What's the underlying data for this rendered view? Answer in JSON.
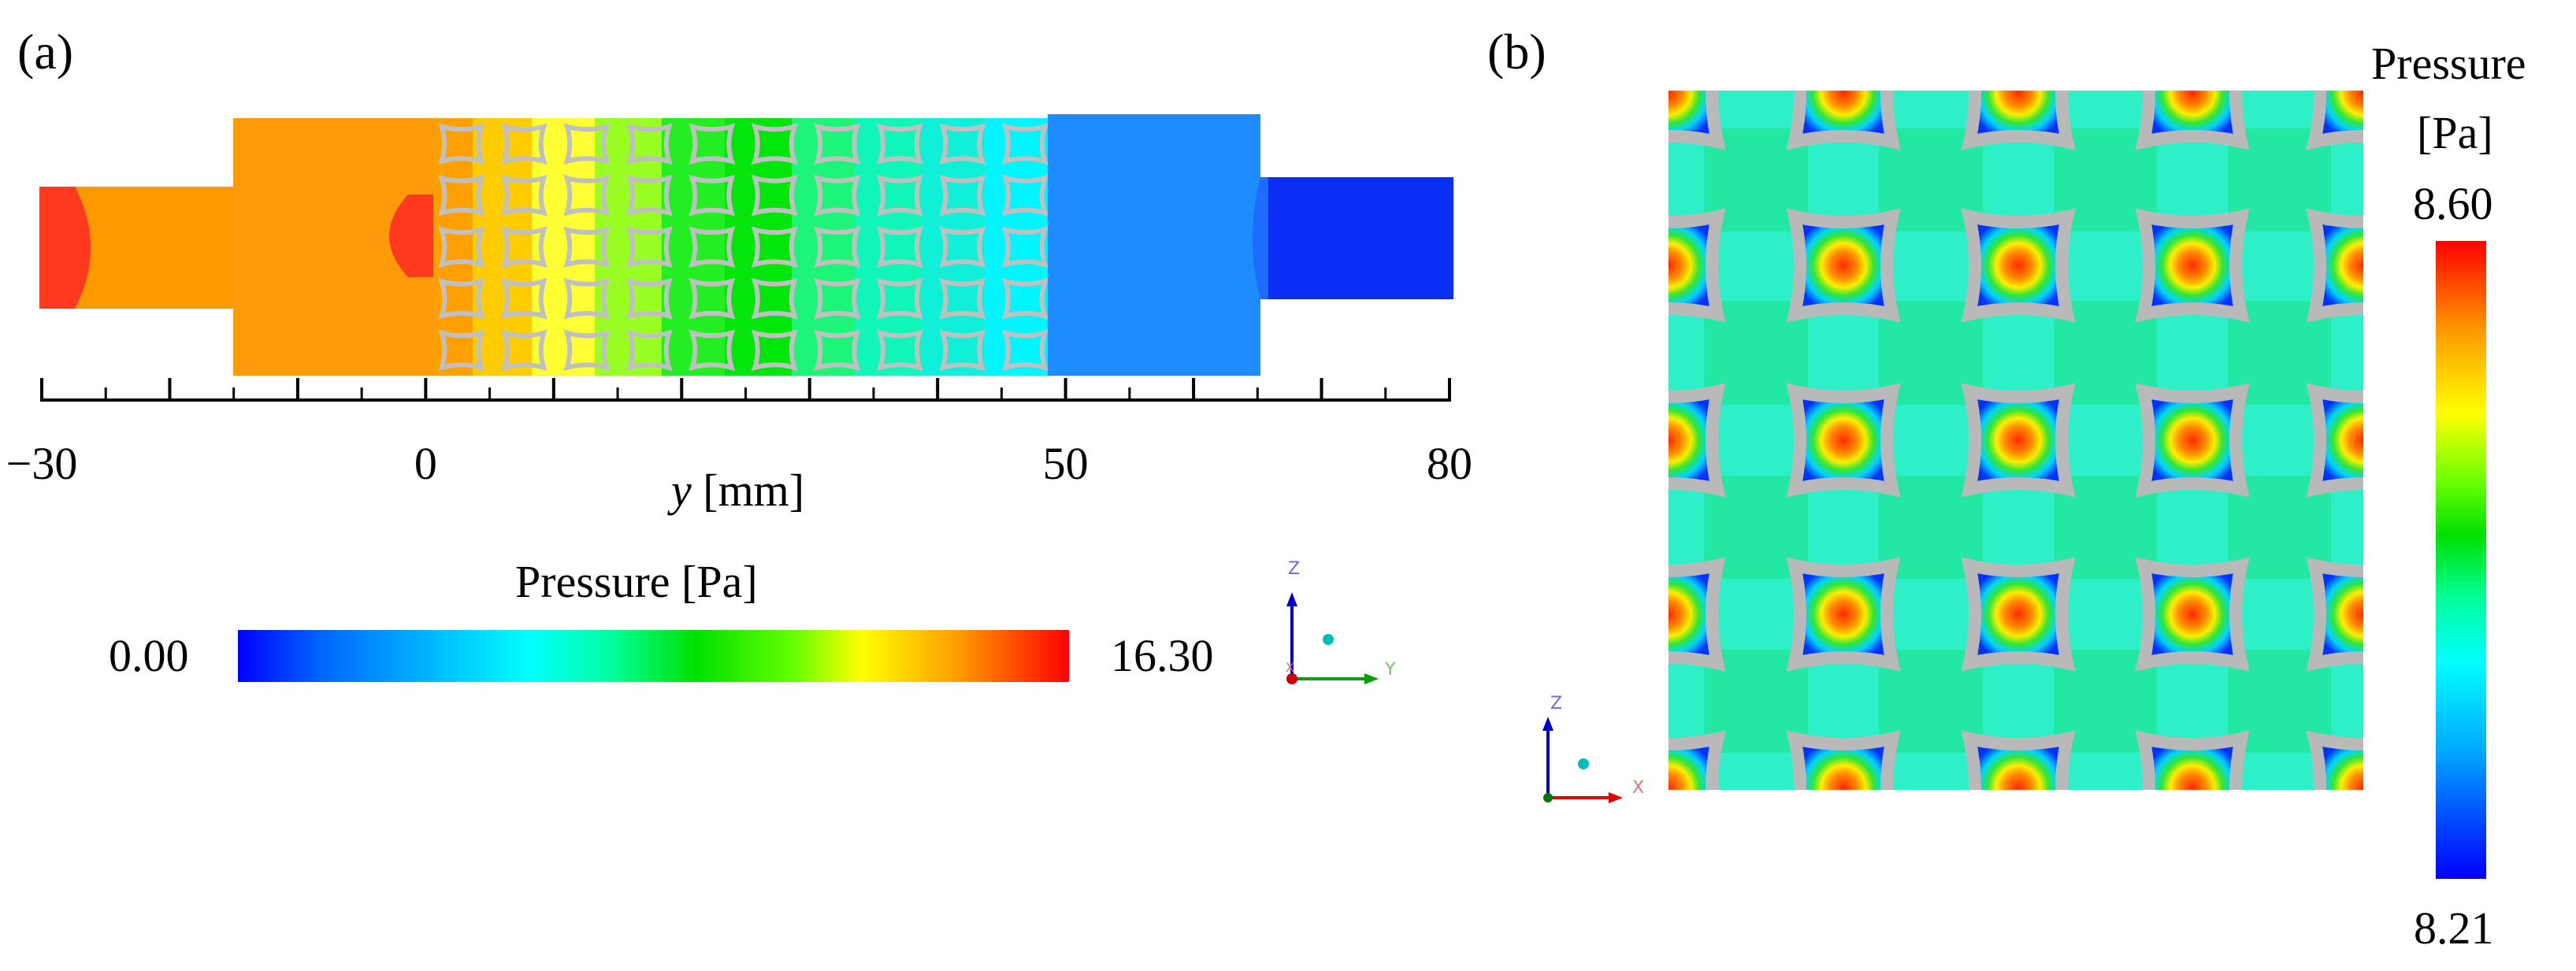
{
  "panel_a": {
    "label": "(a)",
    "axis": {
      "var": "y",
      "unit": "[mm]",
      "tick_labels": [
        {
          "text": "−30",
          "value": -30
        },
        {
          "text": "0",
          "value": 0
        },
        {
          "text": "50",
          "value": 50
        },
        {
          "text": "80",
          "value": 80
        }
      ],
      "range": [
        -30,
        80
      ],
      "major_step": 10,
      "minor_step": 5
    },
    "colorbar": {
      "title": "Pressure [Pa]",
      "min_label": "0.00",
      "max_label": "16.30"
    },
    "triad": {
      "axes": [
        "Z",
        "Y",
        "X"
      ]
    }
  },
  "panel_b": {
    "label": "(b)",
    "colorbar": {
      "title_line1": "Pressure",
      "title_line2": "[Pa]",
      "max_label": "8.60",
      "min_label": "8.21"
    },
    "triad": {
      "axes": [
        "Z",
        "X"
      ]
    },
    "lattice": {
      "rows": 5,
      "cols": 5
    }
  },
  "colors": {
    "jet": [
      "#0000ff",
      "#0080ff",
      "#00ffff",
      "#00ff80",
      "#00e000",
      "#80ff00",
      "#ffff00",
      "#ff8000",
      "#ff0000"
    ],
    "cell_gray": "#b9b9b9",
    "field_b": "#22e8a3",
    "channel_b": "#38f5e8"
  }
}
